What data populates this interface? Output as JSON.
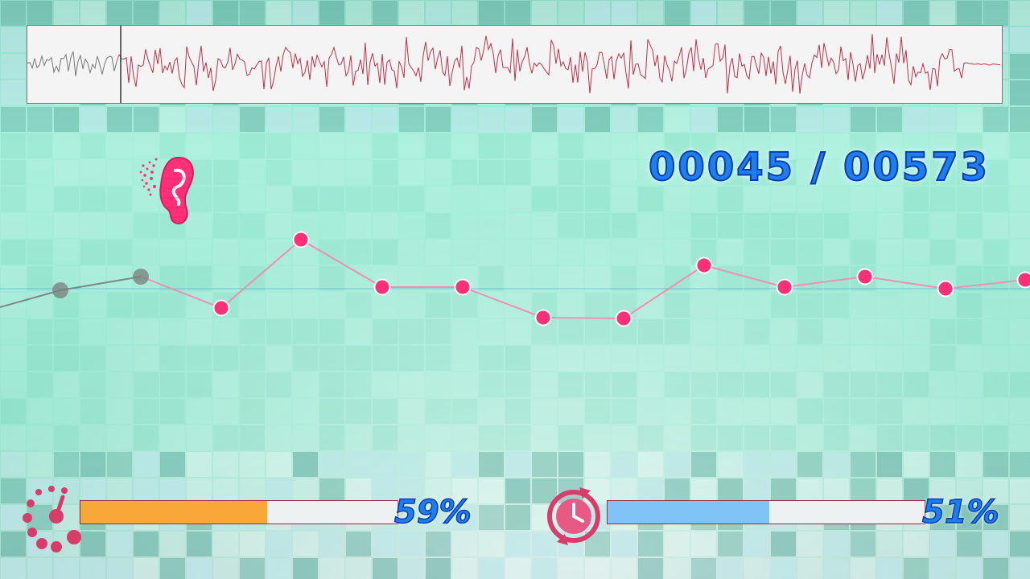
{
  "counter": {
    "current": "00045",
    "separator": "/",
    "total": "00573"
  },
  "hud": {
    "left_meter": {
      "icon": "dotted-gauge-icon",
      "percent_label": "59%",
      "value": 0.59,
      "fill_color": "#f7a838"
    },
    "right_meter": {
      "icon": "clock-cycle-icon",
      "percent_label": "51%",
      "value": 0.51,
      "fill_color": "#7fc3f7"
    }
  },
  "ear_icon": "ear-icon",
  "colors": {
    "accent": "#ff2f78",
    "text_blue": "#1e7ef0",
    "wave_active": "#c0304a",
    "wave_past": "#777777"
  },
  "track_nodes": [
    {
      "state": "past"
    },
    {
      "state": "past"
    },
    {
      "state": "upcoming"
    },
    {
      "state": "upcoming"
    },
    {
      "state": "upcoming"
    },
    {
      "state": "upcoming"
    },
    {
      "state": "upcoming"
    },
    {
      "state": "upcoming"
    },
    {
      "state": "upcoming"
    },
    {
      "state": "upcoming"
    },
    {
      "state": "upcoming"
    },
    {
      "state": "upcoming"
    },
    {
      "state": "upcoming"
    }
  ]
}
